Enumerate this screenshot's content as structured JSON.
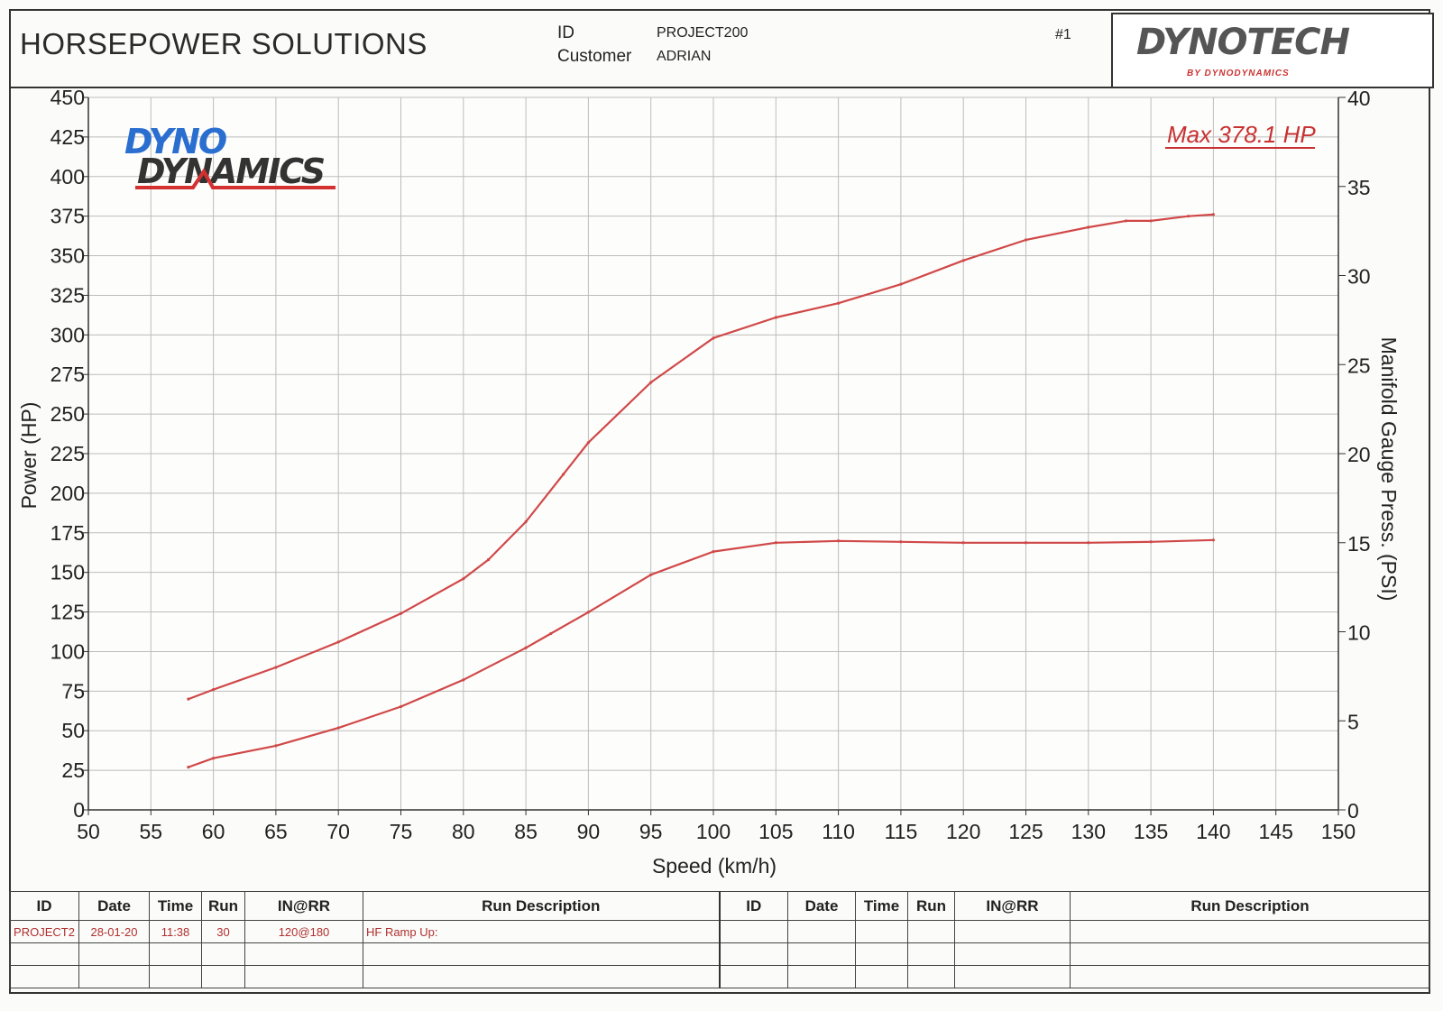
{
  "header": {
    "company": "HORSEPOWER SOLUTIONS",
    "id_label": "ID",
    "id_value": "PROJECT200",
    "customer_label": "Customer",
    "customer_value": "ADRIAN",
    "run_number": "#1",
    "brand_logo_text": "DYNOTECH",
    "brand_logo_sub": "BY DYNODYNAMICS"
  },
  "chart_logo": {
    "line1": "DYNO",
    "line2": "DYNAMICS"
  },
  "colors": {
    "curve": "#d04848",
    "max_label": "#c83232",
    "logo_blue": "#2a6fd0",
    "logo_red": "#d43030"
  },
  "chart_data": {
    "type": "line",
    "xlabel": "Speed (km/h)",
    "ylabel": "Power (HP)",
    "y2label": "Manifold Gauge Press. (PSI)",
    "xlim": [
      50,
      150
    ],
    "ylim": [
      0,
      450
    ],
    "y2lim": [
      0,
      40
    ],
    "x_ticks": [
      "50",
      "55",
      "60",
      "65",
      "70",
      "75",
      "80",
      "85",
      "90",
      "95",
      "100",
      "105",
      "110",
      "115",
      "120",
      "125",
      "130",
      "135",
      "140",
      "145",
      "150"
    ],
    "y_ticks": [
      "0",
      "25",
      "50",
      "75",
      "100",
      "125",
      "150",
      "175",
      "200",
      "225",
      "250",
      "275",
      "300",
      "325",
      "350",
      "375",
      "400",
      "425",
      "450"
    ],
    "y2_ticks": [
      "0",
      "5",
      "10",
      "15",
      "20",
      "25",
      "30",
      "35",
      "40"
    ],
    "grid": true,
    "annotation": "Max 378.1 HP",
    "series": [
      {
        "axis": "left",
        "x": [
          58,
          60,
          65,
          70,
          75,
          80,
          82,
          85,
          88,
          90,
          95,
          100,
          105,
          110,
          115,
          120,
          125,
          130,
          133,
          135,
          138,
          140
        ],
        "y": [
          70,
          76,
          90,
          106,
          124,
          146,
          158,
          182,
          212,
          232,
          270,
          298,
          311,
          320,
          332,
          347,
          360,
          368,
          372,
          372,
          375,
          376
        ]
      },
      {
        "axis": "right",
        "x": [
          58,
          60,
          65,
          70,
          75,
          80,
          85,
          87,
          90,
          95,
          100,
          105,
          110,
          115,
          120,
          125,
          130,
          135,
          140
        ],
        "y": [
          2.4,
          2.9,
          3.6,
          4.6,
          5.8,
          7.3,
          9.1,
          9.9,
          11.1,
          13.2,
          14.5,
          15.0,
          15.1,
          15.05,
          15.0,
          15.0,
          15.0,
          15.05,
          15.15
        ]
      }
    ]
  },
  "table": {
    "headers": [
      "ID",
      "Date",
      "Time",
      "Run",
      "IN@RR",
      "Run Description",
      "ID",
      "Date",
      "Time",
      "Run",
      "IN@RR",
      "Run Description"
    ],
    "rows": [
      [
        "PROJECT2",
        "28-01-20",
        "11:38",
        "30",
        "120@180",
        "HF Ramp Up:",
        "",
        "",
        "",
        "",
        "",
        ""
      ],
      [
        "",
        "",
        "",
        "",
        "",
        "",
        "",
        "",
        "",
        "",
        "",
        ""
      ],
      [
        "",
        "",
        "",
        "",
        "",
        "",
        "",
        "",
        "",
        "",
        "",
        ""
      ]
    ]
  }
}
